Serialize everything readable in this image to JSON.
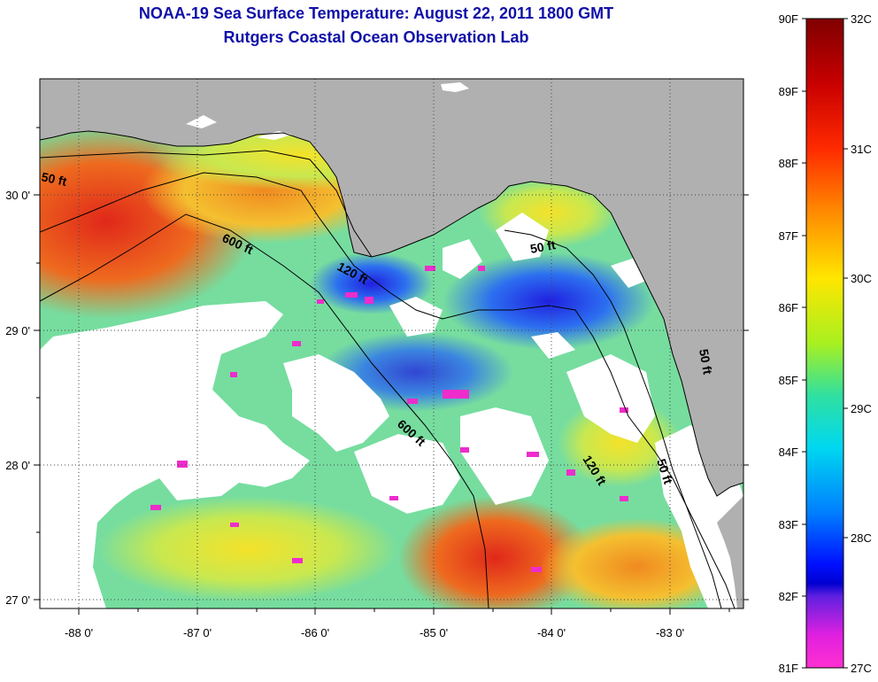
{
  "title": {
    "line1": "NOAA-19 Sea Surface Temperature:  August 22, 2011 1800 GMT",
    "line2": "Rutgers Coastal Ocean Observation Lab"
  },
  "map": {
    "x_ticks": [
      "-88 0'",
      "-87 0'",
      "-86 0'",
      "-85 0'",
      "-84 0'",
      "-83 0'"
    ],
    "y_ticks": [
      "30 0'",
      "29 0'",
      "28 0'",
      "27 0'"
    ],
    "lon_range": [
      -88.33,
      -82.4
    ],
    "lat_range": [
      26.97,
      30.85
    ],
    "contour_labels": [
      "50 ft",
      "600 ft",
      "120 ft",
      "50 ft",
      "600 ft",
      "120 ft",
      "50 ft",
      "50 ft"
    ],
    "colors": {
      "land": "#b0b0b0",
      "cloud": "#ffffff"
    }
  },
  "colorbar": {
    "fahrenheit_labels": [
      "90F",
      "89F",
      "88F",
      "87F",
      "86F",
      "85F",
      "84F",
      "83F",
      "82F",
      "81F"
    ],
    "celsius_labels": [
      "32C",
      "31C",
      "30C",
      "29C",
      "28C",
      "27C"
    ],
    "range_f": [
      81,
      90
    ],
    "range_c": [
      27,
      32
    ]
  }
}
